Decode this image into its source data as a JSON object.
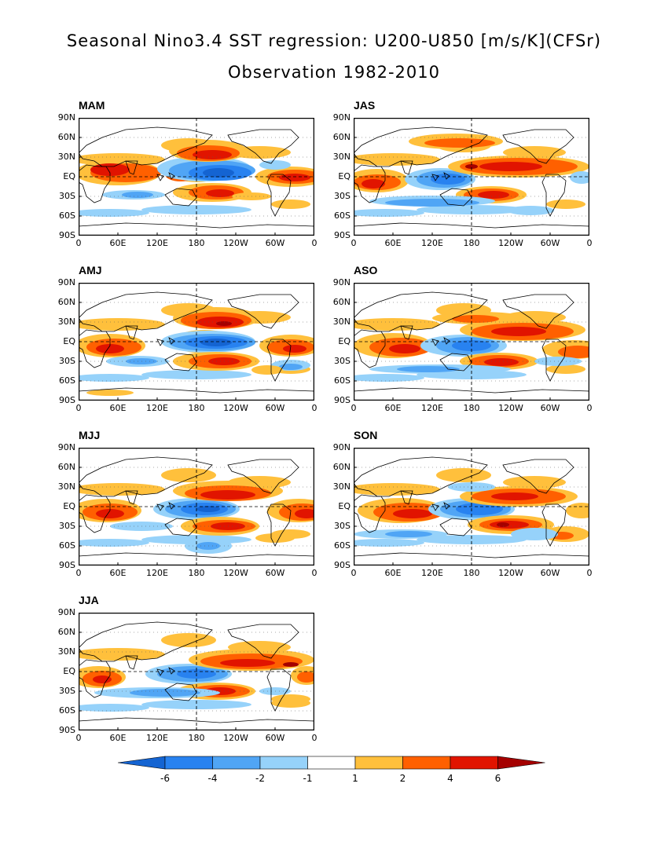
{
  "title_line1": "Seasonal Nino3.4 SST regression: U200-U850 [m/s/K](CFSr)",
  "title_line2": "Observation 1982-2010",
  "lat_ticks": [
    "90N",
    "60N",
    "30N",
    "EQ",
    "30S",
    "60S",
    "90S"
  ],
  "lon_ticks": [
    "0",
    "60E",
    "120E",
    "180",
    "120W",
    "60W",
    "0"
  ],
  "panels": [
    {
      "label": "MAM",
      "pattern": "mam"
    },
    {
      "label": "JAS",
      "pattern": "jas"
    },
    {
      "label": "AMJ",
      "pattern": "amj"
    },
    {
      "label": "ASO",
      "pattern": "aso"
    },
    {
      "label": "MJJ",
      "pattern": "mjj"
    },
    {
      "label": "SON",
      "pattern": "son"
    },
    {
      "label": "JJA",
      "pattern": "jja"
    }
  ],
  "colorbar": {
    "labels": [
      "-6",
      "-4",
      "-2",
      "-1",
      "1",
      "2",
      "4",
      "6"
    ],
    "colors": [
      "#1464d2",
      "#2882f0",
      "#50a5f5",
      "#96d2fa",
      "#ffffff",
      "#ffc03c",
      "#ff6000",
      "#e11400",
      "#a50000"
    ]
  }
}
